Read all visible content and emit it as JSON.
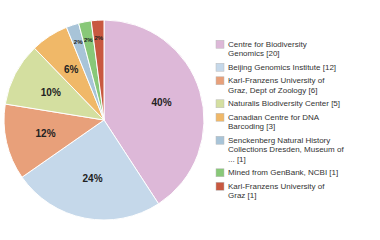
{
  "chart_data": {
    "type": "pie",
    "categories": [
      "Centre for Biodiversity\nGenomics [20]",
      "Beijing Genomics Institute [12]",
      "Karl-Franzens University of\nGraz, Dept of Zoology [6]",
      "Naturalis Biodiversity Center [5]",
      "Canadian Centre for DNA\nBarcoding [3]",
      "Senckenberg Natural History\nCollections Dresden, Museum of\n... [1]",
      "Mined from GenBank, NCBI [1]",
      "Karl-Franzens University of\nGraz [1]"
    ],
    "values": [
      40,
      24,
      12,
      10,
      6,
      2,
      2,
      2
    ],
    "value_labels": [
      "40%",
      "24%",
      "12%",
      "10%",
      "6%",
      "2%",
      "2%",
      "2%"
    ],
    "colors": [
      "#ddb8d8",
      "#c5d8ea",
      "#e8a07a",
      "#d4dfa0",
      "#f0b868",
      "#a8c4d8",
      "#88c878",
      "#c85840"
    ],
    "data_labels": true,
    "legend": "right"
  }
}
